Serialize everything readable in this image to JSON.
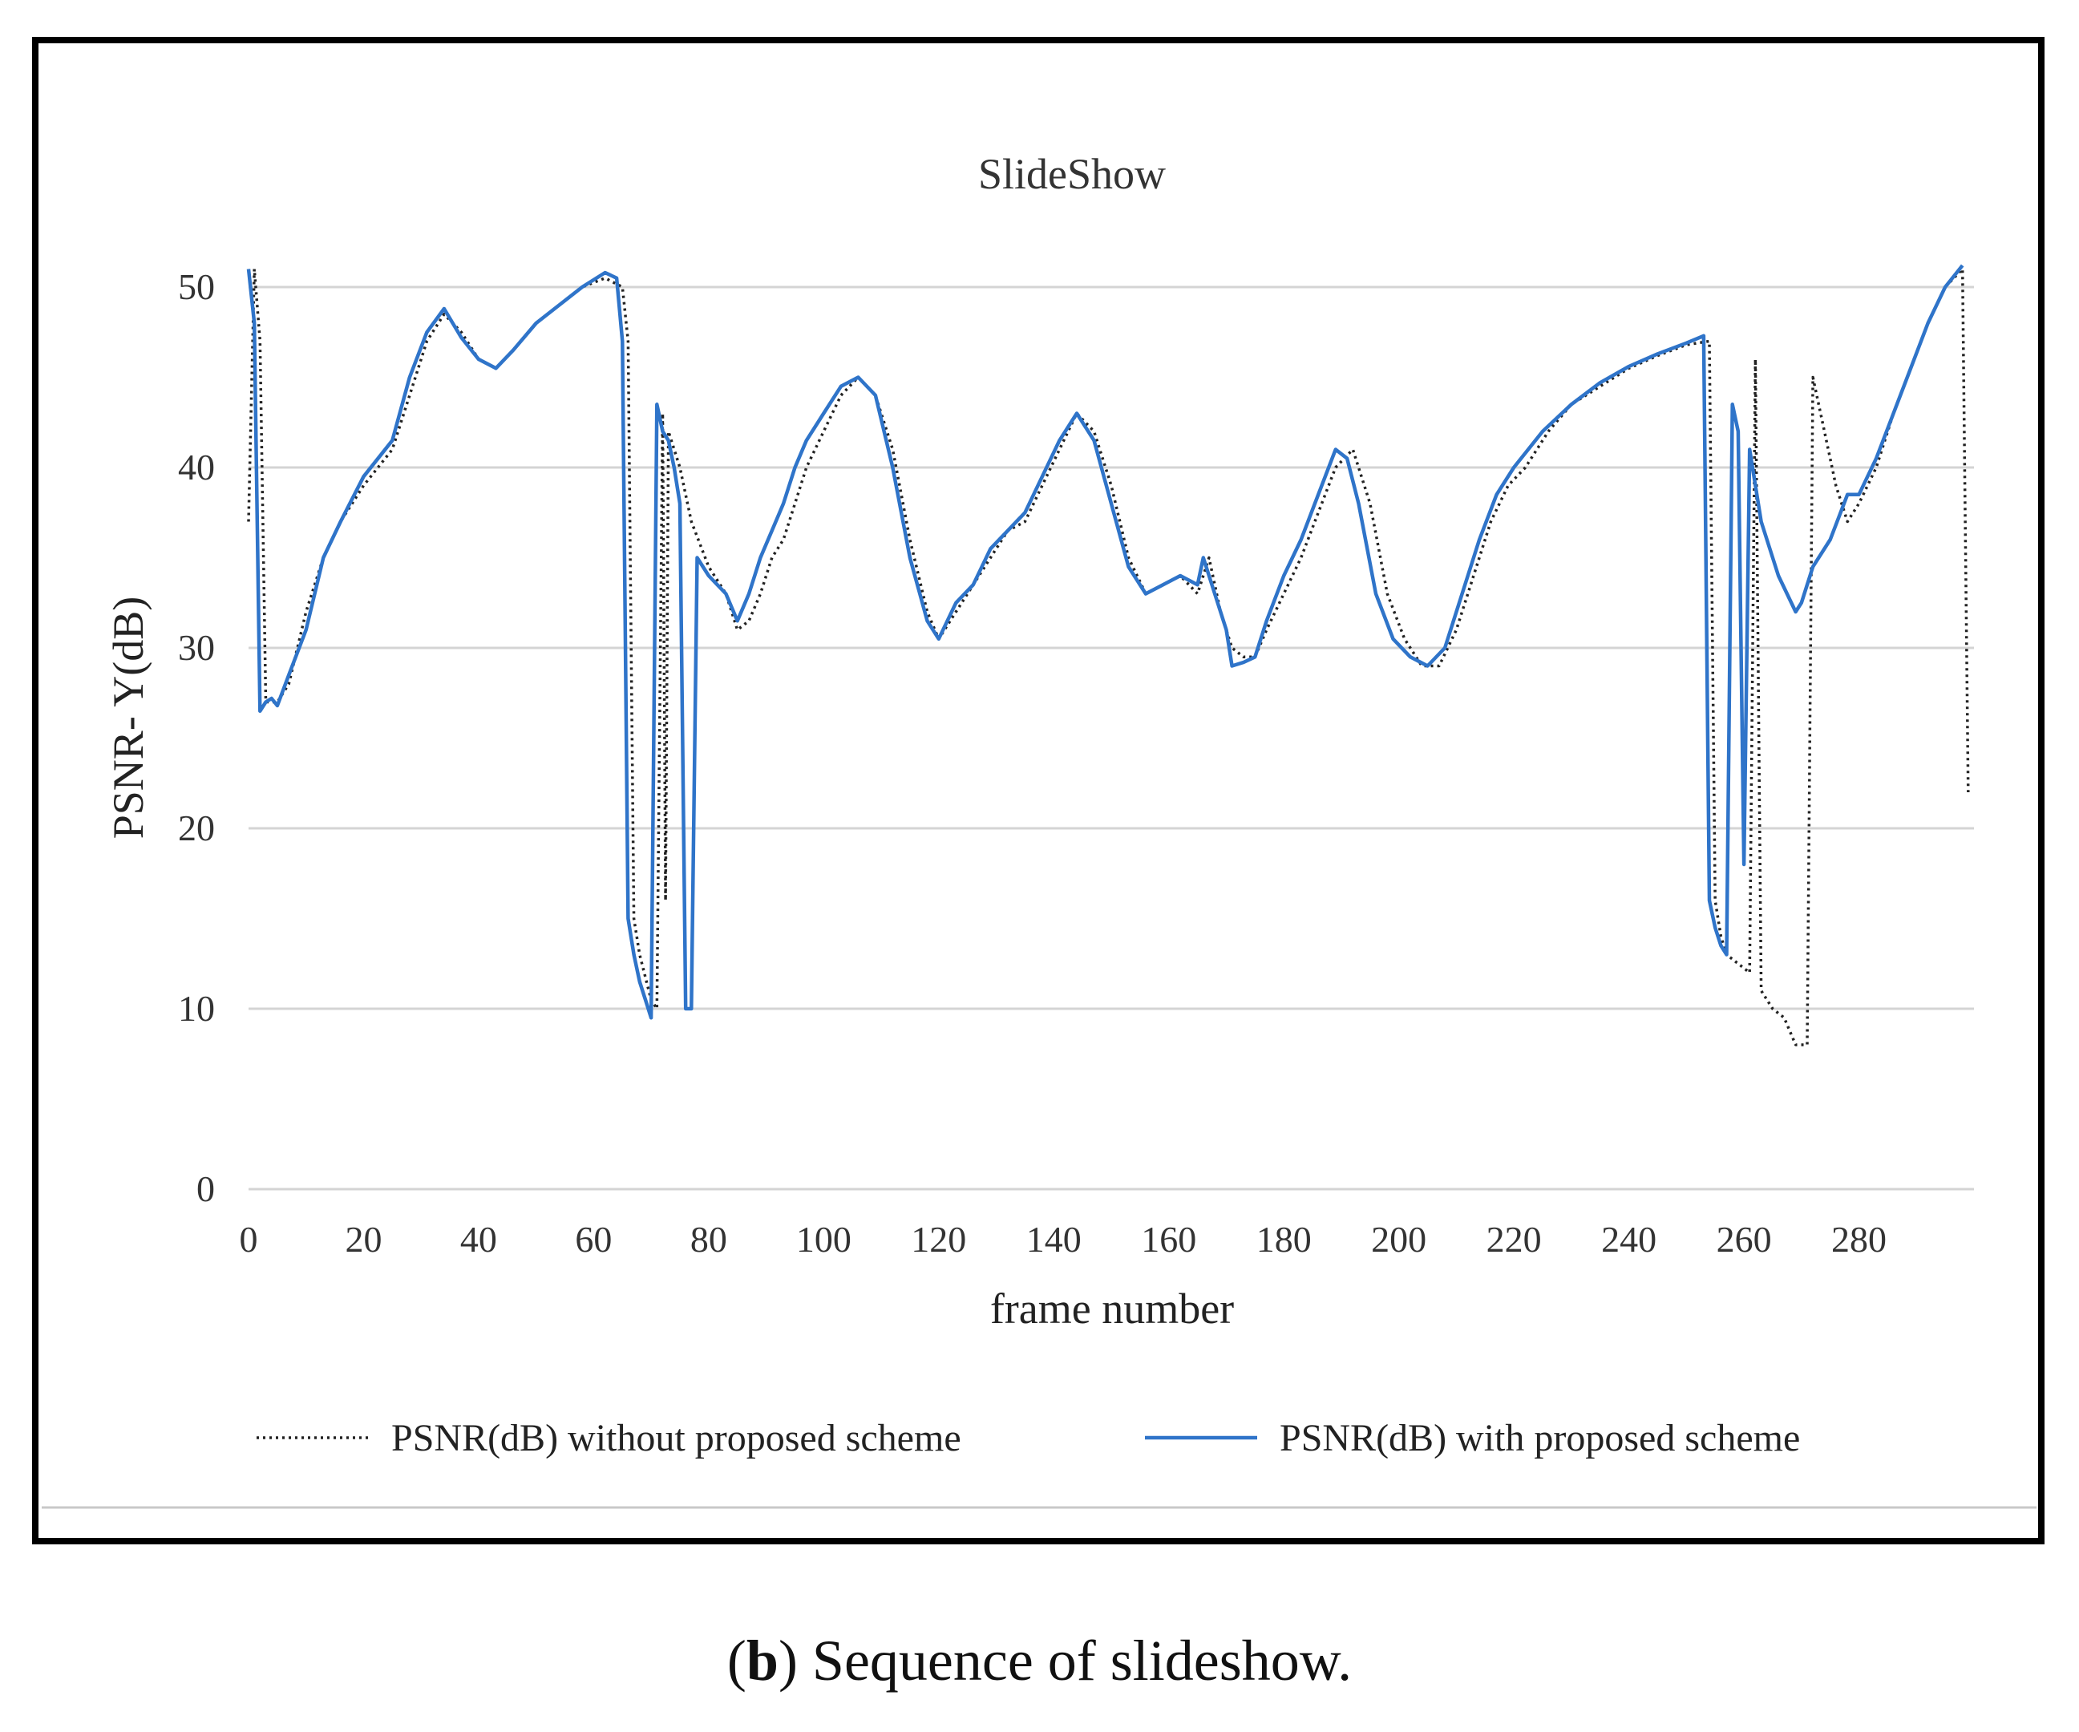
{
  "chart_data": {
    "type": "line",
    "title": "SlideShow",
    "xlabel": "frame number",
    "ylabel": "PSNR- Y(dB)",
    "xlim": [
      0,
      300
    ],
    "ylim": [
      0,
      50
    ],
    "xticks": [
      0,
      20,
      40,
      60,
      80,
      100,
      120,
      140,
      160,
      180,
      200,
      220,
      240,
      260,
      280
    ],
    "yticks": [
      0,
      10,
      20,
      30,
      40,
      50
    ],
    "grid": "horizontal",
    "legend_position": "bottom",
    "colors": {
      "without": "#222222",
      "with": "#2f74c9"
    },
    "series": [
      {
        "name": "PSNR(dB) without proposed scheme",
        "style": "dotted",
        "points": [
          [
            0,
            37
          ],
          [
            1,
            51
          ],
          [
            2,
            47
          ],
          [
            3,
            27
          ],
          [
            5,
            27
          ],
          [
            7,
            28
          ],
          [
            10,
            32
          ],
          [
            13,
            35
          ],
          [
            16,
            37
          ],
          [
            20,
            39
          ],
          [
            25,
            41
          ],
          [
            28,
            44
          ],
          [
            31,
            47
          ],
          [
            34,
            48.5
          ],
          [
            37,
            47.5
          ],
          [
            40,
            46
          ],
          [
            43,
            45.5
          ],
          [
            46,
            46.5
          ],
          [
            50,
            48
          ],
          [
            54,
            49
          ],
          [
            58,
            50
          ],
          [
            62,
            50.5
          ],
          [
            65,
            50
          ],
          [
            66,
            47
          ],
          [
            67,
            15
          ],
          [
            68,
            13
          ],
          [
            70,
            10.5
          ],
          [
            71,
            10
          ],
          [
            72,
            43
          ],
          [
            72.5,
            16
          ],
          [
            73,
            42
          ],
          [
            75,
            40
          ],
          [
            77,
            37
          ],
          [
            80,
            34.5
          ],
          [
            83,
            33
          ],
          [
            85,
            31
          ],
          [
            87,
            31.5
          ],
          [
            89,
            33
          ],
          [
            91,
            35
          ],
          [
            93,
            36
          ],
          [
            95,
            38
          ],
          [
            97,
            40
          ],
          [
            100,
            42
          ],
          [
            103,
            44
          ],
          [
            106,
            45
          ],
          [
            109,
            44
          ],
          [
            112,
            41
          ],
          [
            115,
            36
          ],
          [
            118,
            32
          ],
          [
            120,
            30.5
          ],
          [
            123,
            32
          ],
          [
            126,
            33.5
          ],
          [
            129,
            35
          ],
          [
            132,
            36.5
          ],
          [
            135,
            37
          ],
          [
            138,
            39
          ],
          [
            141,
            41
          ],
          [
            144,
            43
          ],
          [
            147,
            42
          ],
          [
            150,
            39
          ],
          [
            153,
            35
          ],
          [
            156,
            33
          ],
          [
            159,
            33.5
          ],
          [
            162,
            34
          ],
          [
            165,
            33
          ],
          [
            167,
            35
          ],
          [
            169,
            32
          ],
          [
            171,
            30
          ],
          [
            173,
            29.5
          ],
          [
            175,
            29.5
          ],
          [
            177,
            31
          ],
          [
            180,
            33
          ],
          [
            183,
            35
          ],
          [
            186,
            37.5
          ],
          [
            189,
            40
          ],
          [
            192,
            41
          ],
          [
            195,
            38
          ],
          [
            198,
            33
          ],
          [
            201,
            30.5
          ],
          [
            204,
            29
          ],
          [
            207,
            29
          ],
          [
            210,
            31
          ],
          [
            213,
            34
          ],
          [
            216,
            37
          ],
          [
            219,
            39
          ],
          [
            222,
            40
          ],
          [
            226,
            42
          ],
          [
            230,
            43.5
          ],
          [
            235,
            44.5
          ],
          [
            240,
            45.5
          ],
          [
            245,
            46.2
          ],
          [
            250,
            46.8
          ],
          [
            254,
            47
          ],
          [
            255,
            16
          ],
          [
            256,
            14
          ],
          [
            257,
            13
          ],
          [
            259,
            12.5
          ],
          [
            261,
            12
          ],
          [
            262,
            46
          ],
          [
            263,
            11
          ],
          [
            265,
            10
          ],
          [
            267,
            9.5
          ],
          [
            269,
            8
          ],
          [
            271,
            8
          ],
          [
            272,
            45
          ],
          [
            274,
            42
          ],
          [
            276,
            39
          ],
          [
            278,
            37
          ],
          [
            280,
            38
          ],
          [
            283,
            40
          ],
          [
            286,
            43
          ],
          [
            289,
            45.5
          ],
          [
            292,
            48
          ],
          [
            295,
            50
          ],
          [
            298,
            51
          ],
          [
            299,
            22
          ]
        ]
      },
      {
        "name": "PSNR(dB) with proposed scheme",
        "style": "solid",
        "points": [
          [
            0,
            51
          ],
          [
            1,
            48
          ],
          [
            2,
            26.5
          ],
          [
            3,
            27
          ],
          [
            4,
            27.2
          ],
          [
            5,
            26.8
          ],
          [
            7,
            28.5
          ],
          [
            10,
            31
          ],
          [
            13,
            35
          ],
          [
            16,
            37
          ],
          [
            20,
            39.5
          ],
          [
            25,
            41.5
          ],
          [
            28,
            45
          ],
          [
            31,
            47.5
          ],
          [
            34,
            48.8
          ],
          [
            37,
            47.2
          ],
          [
            40,
            46
          ],
          [
            43,
            45.5
          ],
          [
            46,
            46.5
          ],
          [
            50,
            48
          ],
          [
            54,
            49
          ],
          [
            58,
            50
          ],
          [
            62,
            50.8
          ],
          [
            64,
            50.5
          ],
          [
            65,
            47
          ],
          [
            66,
            15
          ],
          [
            67,
            13
          ],
          [
            68,
            11.5
          ],
          [
            69,
            10.5
          ],
          [
            70,
            9.5
          ],
          [
            71,
            43.5
          ],
          [
            72,
            42
          ],
          [
            73,
            41.5
          ],
          [
            74,
            40
          ],
          [
            75,
            38
          ],
          [
            76,
            10
          ],
          [
            77,
            10
          ],
          [
            78,
            35
          ],
          [
            80,
            34
          ],
          [
            83,
            33
          ],
          [
            85,
            31.5
          ],
          [
            87,
            33
          ],
          [
            89,
            35
          ],
          [
            91,
            36.5
          ],
          [
            93,
            38
          ],
          [
            95,
            40
          ],
          [
            97,
            41.5
          ],
          [
            100,
            43
          ],
          [
            103,
            44.5
          ],
          [
            106,
            45
          ],
          [
            109,
            44
          ],
          [
            112,
            40
          ],
          [
            115,
            35
          ],
          [
            118,
            31.5
          ],
          [
            120,
            30.5
          ],
          [
            123,
            32.5
          ],
          [
            126,
            33.5
          ],
          [
            129,
            35.5
          ],
          [
            132,
            36.5
          ],
          [
            135,
            37.5
          ],
          [
            138,
            39.5
          ],
          [
            141,
            41.5
          ],
          [
            144,
            43
          ],
          [
            147,
            41.5
          ],
          [
            150,
            38
          ],
          [
            153,
            34.5
          ],
          [
            156,
            33
          ],
          [
            159,
            33.5
          ],
          [
            162,
            34
          ],
          [
            165,
            33.5
          ],
          [
            166,
            35
          ],
          [
            168,
            33
          ],
          [
            170,
            31
          ],
          [
            171,
            29
          ],
          [
            173,
            29.2
          ],
          [
            175,
            29.5
          ],
          [
            177,
            31.5
          ],
          [
            180,
            34
          ],
          [
            183,
            36
          ],
          [
            186,
            38.5
          ],
          [
            189,
            41
          ],
          [
            191,
            40.5
          ],
          [
            193,
            38
          ],
          [
            196,
            33
          ],
          [
            199,
            30.5
          ],
          [
            202,
            29.5
          ],
          [
            205,
            29
          ],
          [
            208,
            30
          ],
          [
            211,
            33
          ],
          [
            214,
            36
          ],
          [
            217,
            38.5
          ],
          [
            220,
            40
          ],
          [
            225,
            42
          ],
          [
            230,
            43.5
          ],
          [
            235,
            44.7
          ],
          [
            240,
            45.6
          ],
          [
            245,
            46.3
          ],
          [
            250,
            46.9
          ],
          [
            253,
            47.3
          ],
          [
            254,
            16
          ],
          [
            255,
            14.5
          ],
          [
            256,
            13.5
          ],
          [
            257,
            13
          ],
          [
            258,
            43.5
          ],
          [
            259,
            42
          ],
          [
            260,
            18
          ],
          [
            261,
            41
          ],
          [
            263,
            37
          ],
          [
            266,
            34
          ],
          [
            269,
            32
          ],
          [
            270,
            32.5
          ],
          [
            272,
            34.5
          ],
          [
            275,
            36
          ],
          [
            278,
            38.5
          ],
          [
            280,
            38.5
          ],
          [
            283,
            40.5
          ],
          [
            286,
            43
          ],
          [
            289,
            45.5
          ],
          [
            292,
            48
          ],
          [
            295,
            50
          ],
          [
            298,
            51.2
          ]
        ]
      }
    ]
  },
  "caption": {
    "letter": "b",
    "text": "Sequence of slideshow."
  }
}
